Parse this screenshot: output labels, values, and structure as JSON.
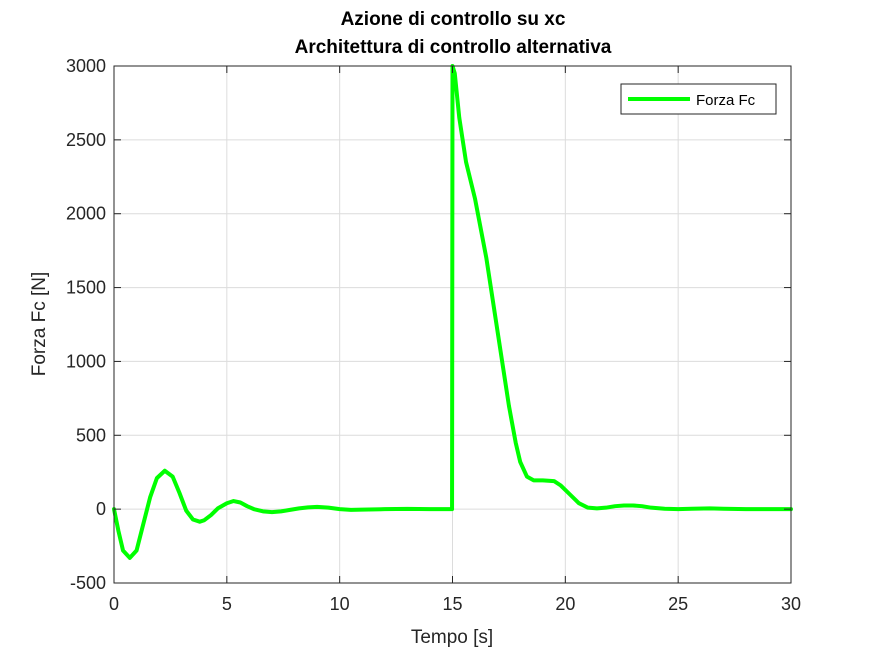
{
  "chart_data": {
    "type": "line",
    "title": "Azione di controllo su xc",
    "subtitle": "Architettura di controllo alternativa",
    "xlabel": "Tempo [s]",
    "ylabel": "Forza Fc [N]",
    "xlim": [
      0,
      30
    ],
    "ylim": [
      -500,
      3000
    ],
    "xticks": [
      0,
      5,
      10,
      15,
      20,
      25,
      30
    ],
    "yticks": [
      -500,
      0,
      500,
      1000,
      1500,
      2000,
      2500,
      3000
    ],
    "grid": true,
    "legend_position": "top-right",
    "series": [
      {
        "name": "Forza Fc",
        "color": "#00ff00",
        "x": [
          0,
          0.2,
          0.4,
          0.7,
          1.0,
          1.3,
          1.6,
          1.9,
          2.25,
          2.6,
          2.9,
          3.2,
          3.5,
          3.8,
          4.0,
          4.3,
          4.6,
          5.0,
          5.3,
          5.6,
          5.9,
          6.2,
          6.6,
          7.0,
          7.4,
          7.8,
          8.2,
          8.6,
          9.0,
          9.5,
          10.0,
          10.5,
          11.0,
          12.0,
          13.0,
          14.0,
          14.98,
          15.0,
          15.1,
          15.3,
          15.6,
          16.0,
          16.5,
          17.0,
          17.5,
          17.8,
          18.0,
          18.3,
          18.6,
          19.0,
          19.5,
          19.8,
          20.2,
          20.6,
          21.0,
          21.4,
          21.8,
          22.2,
          22.6,
          23.0,
          23.4,
          23.8,
          24.4,
          25.0,
          25.6,
          26.4,
          27.0,
          28.0,
          29.0,
          30.0
        ],
        "y": [
          0,
          -150,
          -280,
          -330,
          -280,
          -100,
          80,
          210,
          260,
          220,
          110,
          -10,
          -70,
          -85,
          -75,
          -40,
          5,
          40,
          55,
          45,
          20,
          0,
          -15,
          -20,
          -15,
          -5,
          5,
          12,
          15,
          10,
          0,
          -5,
          -3,
          0,
          2,
          0,
          0,
          3000,
          2950,
          2650,
          2350,
          2100,
          1700,
          1200,
          700,
          450,
          320,
          220,
          195,
          195,
          190,
          160,
          100,
          40,
          10,
          5,
          10,
          20,
          25,
          25,
          20,
          10,
          3,
          0,
          3,
          5,
          3,
          0,
          0,
          0
        ]
      }
    ]
  }
}
